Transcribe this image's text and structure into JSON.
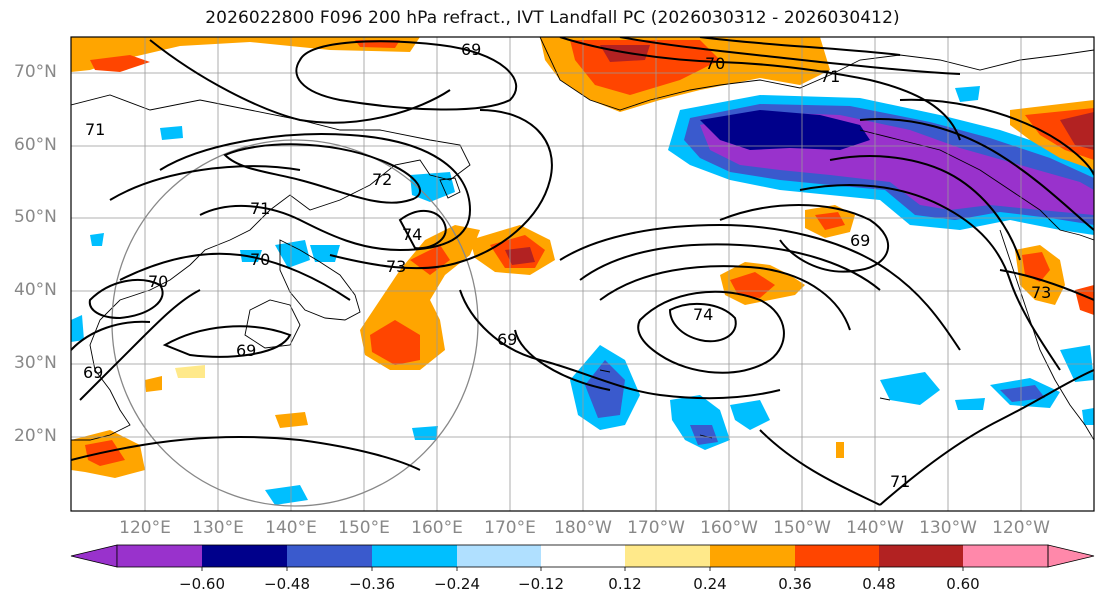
{
  "title": "2026022800 F096 200 hPa refract., IVT Landfall PC (2026030312 - 2026030412)",
  "lat_labels": [
    "70°N",
    "60°N",
    "50°N",
    "40°N",
    "30°N",
    "20°N"
  ],
  "lon_labels": [
    "120°E",
    "130°E",
    "140°E",
    "150°E",
    "160°E",
    "170°E",
    "180°W",
    "170°W",
    "160°W",
    "150°W",
    "140°W",
    "130°W",
    "120°W"
  ],
  "contour_labels": [
    "69",
    "70",
    "71",
    "72",
    "73",
    "74"
  ],
  "colorbar": {
    "ticks": [
      "−0.60",
      "−0.48",
      "−0.36",
      "−0.24",
      "−0.12",
      "0.12",
      "0.24",
      "0.36",
      "0.48",
      "0.60"
    ],
    "colors": [
      "#9932CC",
      "#00008B",
      "#3A5ACD",
      "#00BFFF",
      "#B0E0FF",
      "#FFFFFF",
      "#FFE98A",
      "#FFA500",
      "#FF4500",
      "#B22222",
      "#FF88AA"
    ]
  }
}
